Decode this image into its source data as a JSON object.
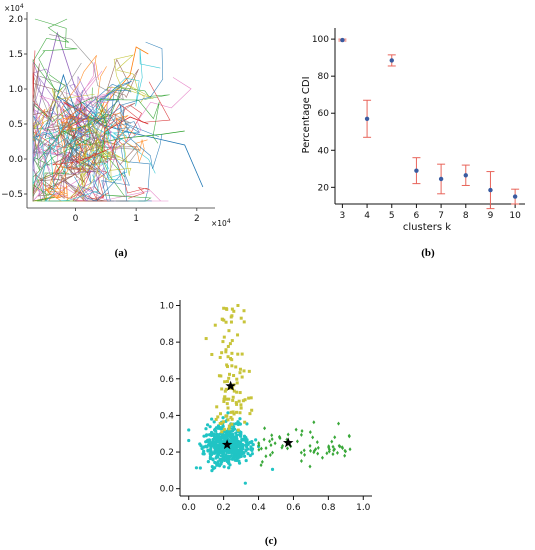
{
  "panels": {
    "a": "(a)",
    "b": "(b)",
    "c": "(c)"
  },
  "chart_data": [
    {
      "panel": "a",
      "type": "line",
      "title": "",
      "x_ticks": [
        "0",
        "1",
        "2"
      ],
      "y_ticks": [
        "−0.5",
        "0.0",
        "0.5",
        "1.0",
        "1.5",
        "2.0"
      ],
      "x_multiplier": "×10",
      "x_multiplier_exp": "4",
      "y_multiplier": "×10",
      "y_multiplier_exp": "4",
      "xlim": [
        -0.8,
        2.3
      ],
      "ylim": [
        -0.7,
        2.1
      ],
      "scale_factor": 10000,
      "series_colors": [
        "#1f77b4",
        "#ff7f0e",
        "#2ca02c",
        "#d62728",
        "#9467bd",
        "#8c564b",
        "#e377c2",
        "#7f7f7f",
        "#bcbd22",
        "#17becf"
      ],
      "series": [
        {
          "name": "",
          "x": [
            -0.5,
            -0.2,
            0.1,
            -0.3,
            0.4,
            0.8,
            1.3,
            1.8,
            2.1
          ],
          "y": [
            0.3,
            1.2,
            0.4,
            0.9,
            0.5,
            0.4,
            0.3,
            0.2,
            -0.4
          ]
        },
        {
          "name": "",
          "x": [
            0.0,
            0.3,
            0.6,
            0.9,
            1.0,
            1.2
          ],
          "y": [
            0.2,
            0.5,
            0.9,
            1.2,
            1.6,
            1.5
          ]
        },
        {
          "name": "",
          "x": [
            -0.6,
            -0.2,
            0.2,
            0.8,
            1.4,
            1.8
          ],
          "y": [
            0.0,
            0.4,
            0.2,
            0.3,
            0.35,
            0.4
          ]
        },
        {
          "name": "",
          "x": [
            -0.4,
            -0.1,
            0.2,
            0.5,
            0.9,
            1.2
          ],
          "y": [
            -0.3,
            0.1,
            -0.2,
            0.4,
            0.6,
            0.5
          ]
        },
        {
          "name": "",
          "x": [
            -0.7,
            -0.3,
            0.0,
            0.3,
            0.7
          ],
          "y": [
            0.4,
            1.8,
            1.0,
            0.3,
            0.2
          ]
        }
      ]
    },
    {
      "panel": "b",
      "type": "scatter",
      "title": "",
      "xlabel": "clusters k",
      "ylabel": "Percentage CDI",
      "x": [
        3,
        4,
        5,
        6,
        7,
        8,
        9,
        10
      ],
      "y": [
        99.5,
        57,
        88.5,
        29,
        24.5,
        26.5,
        18.5,
        15
      ],
      "err": [
        0.5,
        10,
        3,
        7,
        8,
        5.5,
        10,
        4
      ],
      "xlim": [
        2.7,
        10.4
      ],
      "ylim": [
        11,
        106
      ],
      "x_ticks": [
        "3",
        "4",
        "5",
        "6",
        "7",
        "8",
        "9",
        "10"
      ],
      "y_ticks": [
        "20",
        "40",
        "60",
        "80",
        "100"
      ],
      "point_color": "#3a5ba0",
      "error_color": "#e8645a"
    },
    {
      "panel": "c",
      "type": "scatter",
      "title": "",
      "xlim": [
        -0.05,
        1.05
      ],
      "ylim": [
        -0.04,
        1.03
      ],
      "x_ticks": [
        "0.0",
        "0.2",
        "0.4",
        "0.6",
        "0.8",
        "1.0"
      ],
      "y_ticks": [
        "0.0",
        "0.2",
        "0.4",
        "0.6",
        "0.8",
        "1.0"
      ],
      "clusters": [
        {
          "name": "",
          "color": "#20c4c4",
          "marker": "circle",
          "center": [
            0.22,
            0.24
          ],
          "spread": [
            0.07,
            0.055
          ],
          "count": 500
        },
        {
          "name": "",
          "color": "#c8c43a",
          "marker": "square",
          "center": [
            0.24,
            0.56
          ],
          "spread": [
            0.05,
            0.14
          ],
          "count": 110
        },
        {
          "name": "",
          "color": "#3aa83a",
          "marker": "diamond",
          "center": [
            0.57,
            0.24
          ],
          "spread": [
            0.14,
            0.05
          ],
          "count": 70
        }
      ],
      "centroids": [
        [
          0.22,
          0.24
        ],
        [
          0.24,
          0.56
        ],
        [
          0.57,
          0.25
        ]
      ],
      "centroid_marker": "star"
    }
  ]
}
